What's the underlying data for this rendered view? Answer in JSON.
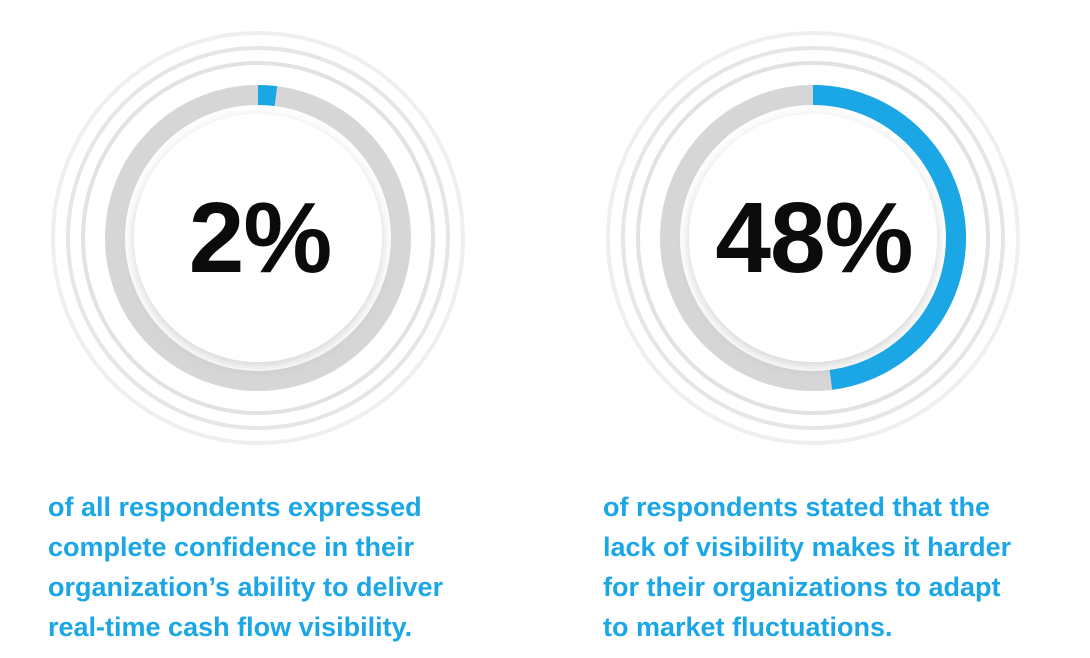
{
  "colors": {
    "accent": "#1ba7e6",
    "track": "#d6d6d6",
    "rings": "#ececec",
    "text": "#0b0b0b"
  },
  "chart_data": [
    {
      "type": "pie",
      "values": [
        2,
        98
      ],
      "unit": "%",
      "label": "2%",
      "caption_lines": [
        "of all respondents expressed",
        "complete confidence in their",
        "organization’s ability to deliver",
        "real-time cash flow visibility."
      ]
    },
    {
      "type": "pie",
      "values": [
        48,
        52
      ],
      "unit": "%",
      "label": "48%",
      "caption_lines": [
        "of respondents stated that the",
        "lack of visibility makes it harder",
        "for their organizations to adapt",
        "to market fluctuations."
      ]
    }
  ]
}
